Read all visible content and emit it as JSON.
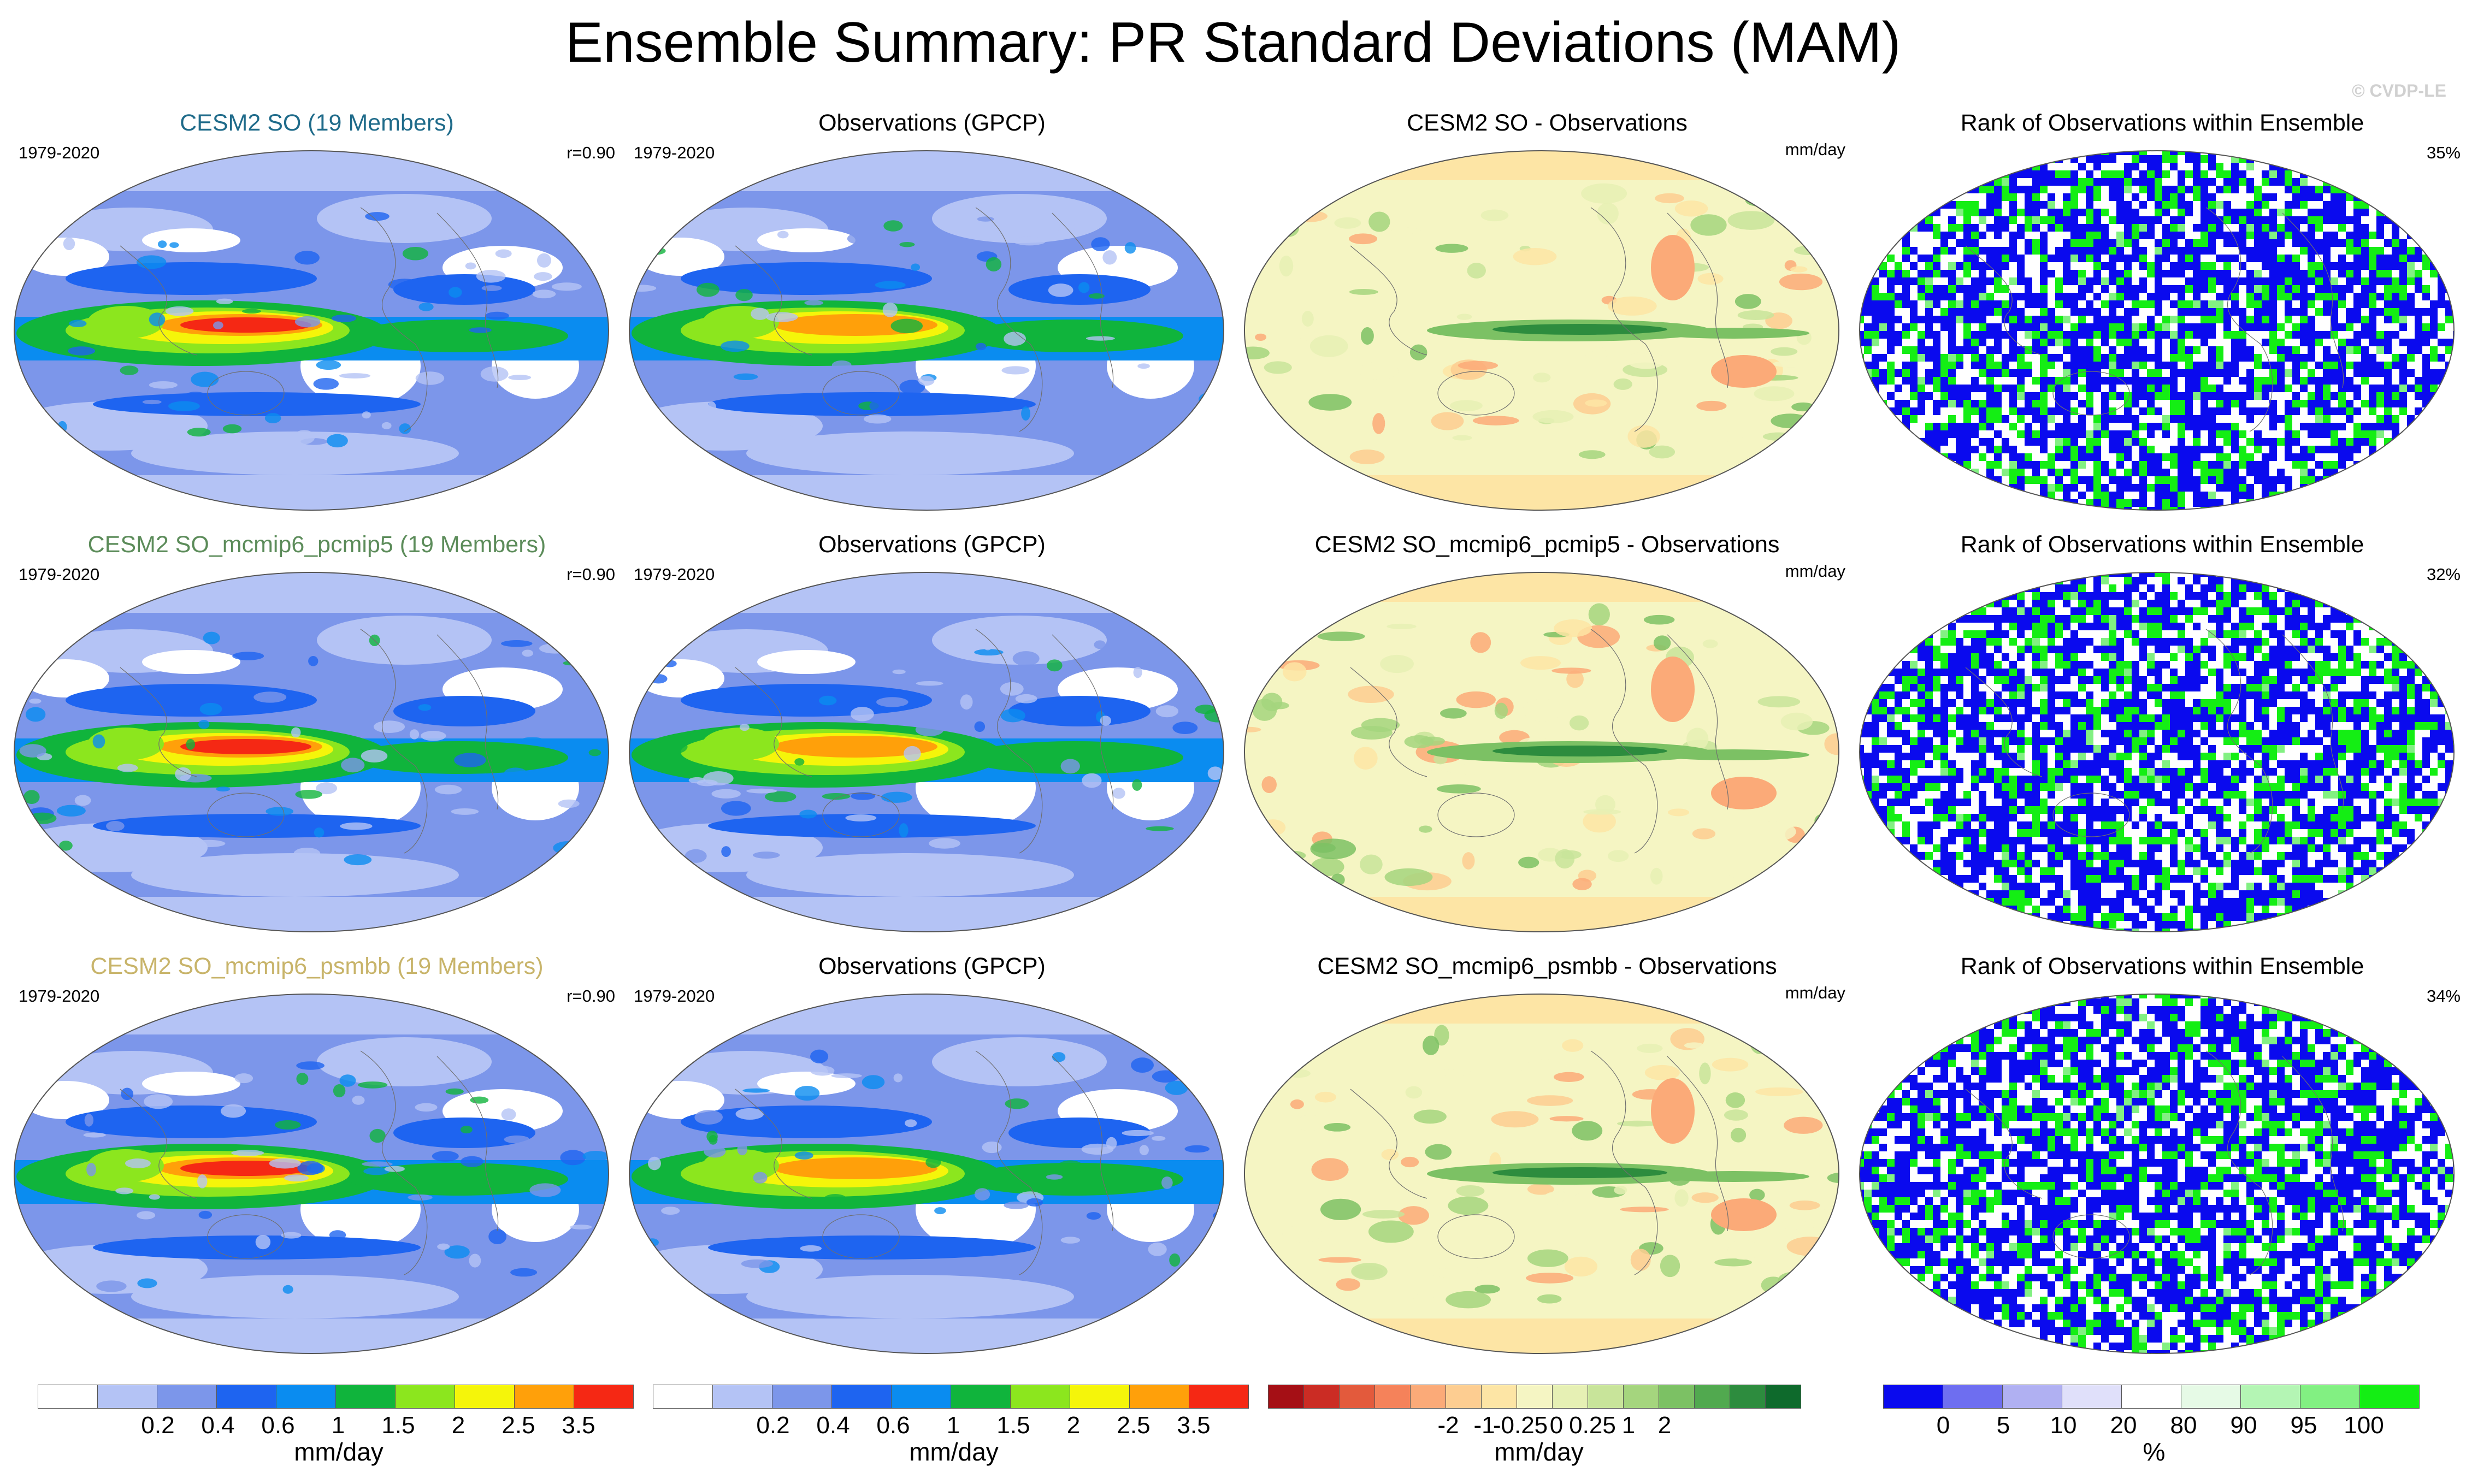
{
  "figure": {
    "title": "Ensemble Summary: PR Standard Deviations (MAM)",
    "watermark": "© CVDP-LE"
  },
  "rows": [
    {
      "model": {
        "title": "CESM2 SO (19 Members)",
        "title_color": "#1f6b8a",
        "period": "1979-2020",
        "corr": "r=0.90"
      },
      "obs": {
        "title": "Observations (GPCP)",
        "period": "1979-2020"
      },
      "diff": {
        "title": "CESM2 SO - Observations",
        "units": "mm/day"
      },
      "rank": {
        "title": "Rank of Observations within Ensemble",
        "pct": "35%"
      }
    },
    {
      "model": {
        "title": "CESM2 SO_mcmip6_pcmip5 (19 Members)",
        "title_color": "#5c8c5a",
        "period": "1979-2020",
        "corr": "r=0.90"
      },
      "obs": {
        "title": "Observations (GPCP)",
        "period": "1979-2020"
      },
      "diff": {
        "title": "CESM2 SO_mcmip6_pcmip5 - Observations",
        "units": "mm/day"
      },
      "rank": {
        "title": "Rank of Observations within Ensemble",
        "pct": "32%"
      }
    },
    {
      "model": {
        "title": "CESM2 SO_mcmip6_psmbb (19 Members)",
        "title_color": "#c8b46a",
        "period": "1979-2020",
        "corr": "r=0.90"
      },
      "obs": {
        "title": "Observations (GPCP)",
        "period": "1979-2020"
      },
      "diff": {
        "title": "CESM2 SO_mcmip6_psmbb - Observations",
        "units": "mm/day"
      },
      "rank": {
        "title": "Rank of Observations within Ensemble",
        "pct": "34%"
      }
    }
  ],
  "colorbars": {
    "stddev": {
      "colors": [
        "#ffffff",
        "#b4c3f5",
        "#7c96ea",
        "#1e64f0",
        "#0a8cf0",
        "#10b43c",
        "#8ce61e",
        "#f5f50a",
        "#ffa00a",
        "#f52814"
      ],
      "ticks": [
        "0.2",
        "0.4",
        "0.6",
        "1",
        "1.5",
        "2",
        "2.5",
        "3.5"
      ],
      "label": "mm/day"
    },
    "diff": {
      "colors": [
        "#a50f15",
        "#cb2c24",
        "#e35a3c",
        "#f5825a",
        "#fbaa78",
        "#fdcd91",
        "#fde5a5",
        "#f5f5c3",
        "#e6f0b4",
        "#c8e49a",
        "#a5d57e",
        "#7cc164",
        "#51a94f",
        "#2d8c3e",
        "#0e6a2c"
      ],
      "ticks": [
        "-2",
        "-1",
        "-0.25",
        "0",
        "0.25",
        "1",
        "2"
      ],
      "label": "mm/day"
    },
    "rank": {
      "colors": [
        "#0a0aee",
        "#6e6ef0",
        "#b0b0f2",
        "#e0e0fa",
        "#ffffff",
        "#e6fae6",
        "#b4f5b4",
        "#82f082",
        "#14ee14"
      ],
      "ticks": [
        "0",
        "5",
        "10",
        "20",
        "80",
        "90",
        "95",
        "100"
      ],
      "label": "%"
    }
  }
}
